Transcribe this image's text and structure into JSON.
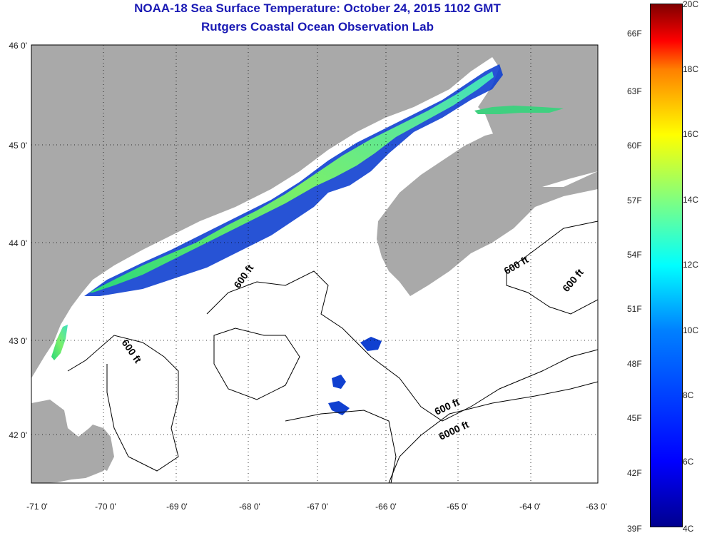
{
  "title": {
    "line1": "NOAA-18 Sea Surface Temperature:  October 24, 2015 1102 GMT",
    "line2": "Rutgers Coastal Ocean Observation Lab"
  },
  "axes": {
    "lat_labels": [
      "46 0'",
      "45 0'",
      "44 0'",
      "43 0'",
      "42 0'"
    ],
    "lon_labels": [
      "-71 0'",
      "-70 0'",
      "-69 0'",
      "-68 0'",
      "-67 0'",
      "-66 0'",
      "-65 0'",
      "-64 0'",
      "-63 0'"
    ]
  },
  "colorbar": {
    "celsius": [
      "20C",
      "18C",
      "16C",
      "14C",
      "12C",
      "10C",
      "8C",
      "6C",
      "4C"
    ],
    "fahrenheit": [
      "66F",
      "63F",
      "60F",
      "57F",
      "54F",
      "51F",
      "48F",
      "45F",
      "42F",
      "39F"
    ]
  },
  "contours": {
    "shelf": "600 ft",
    "deep": "6000 ft"
  },
  "colors": {
    "land": "#a9a9a9",
    "title": "#1a1ab4",
    "grid": "#000000"
  }
}
